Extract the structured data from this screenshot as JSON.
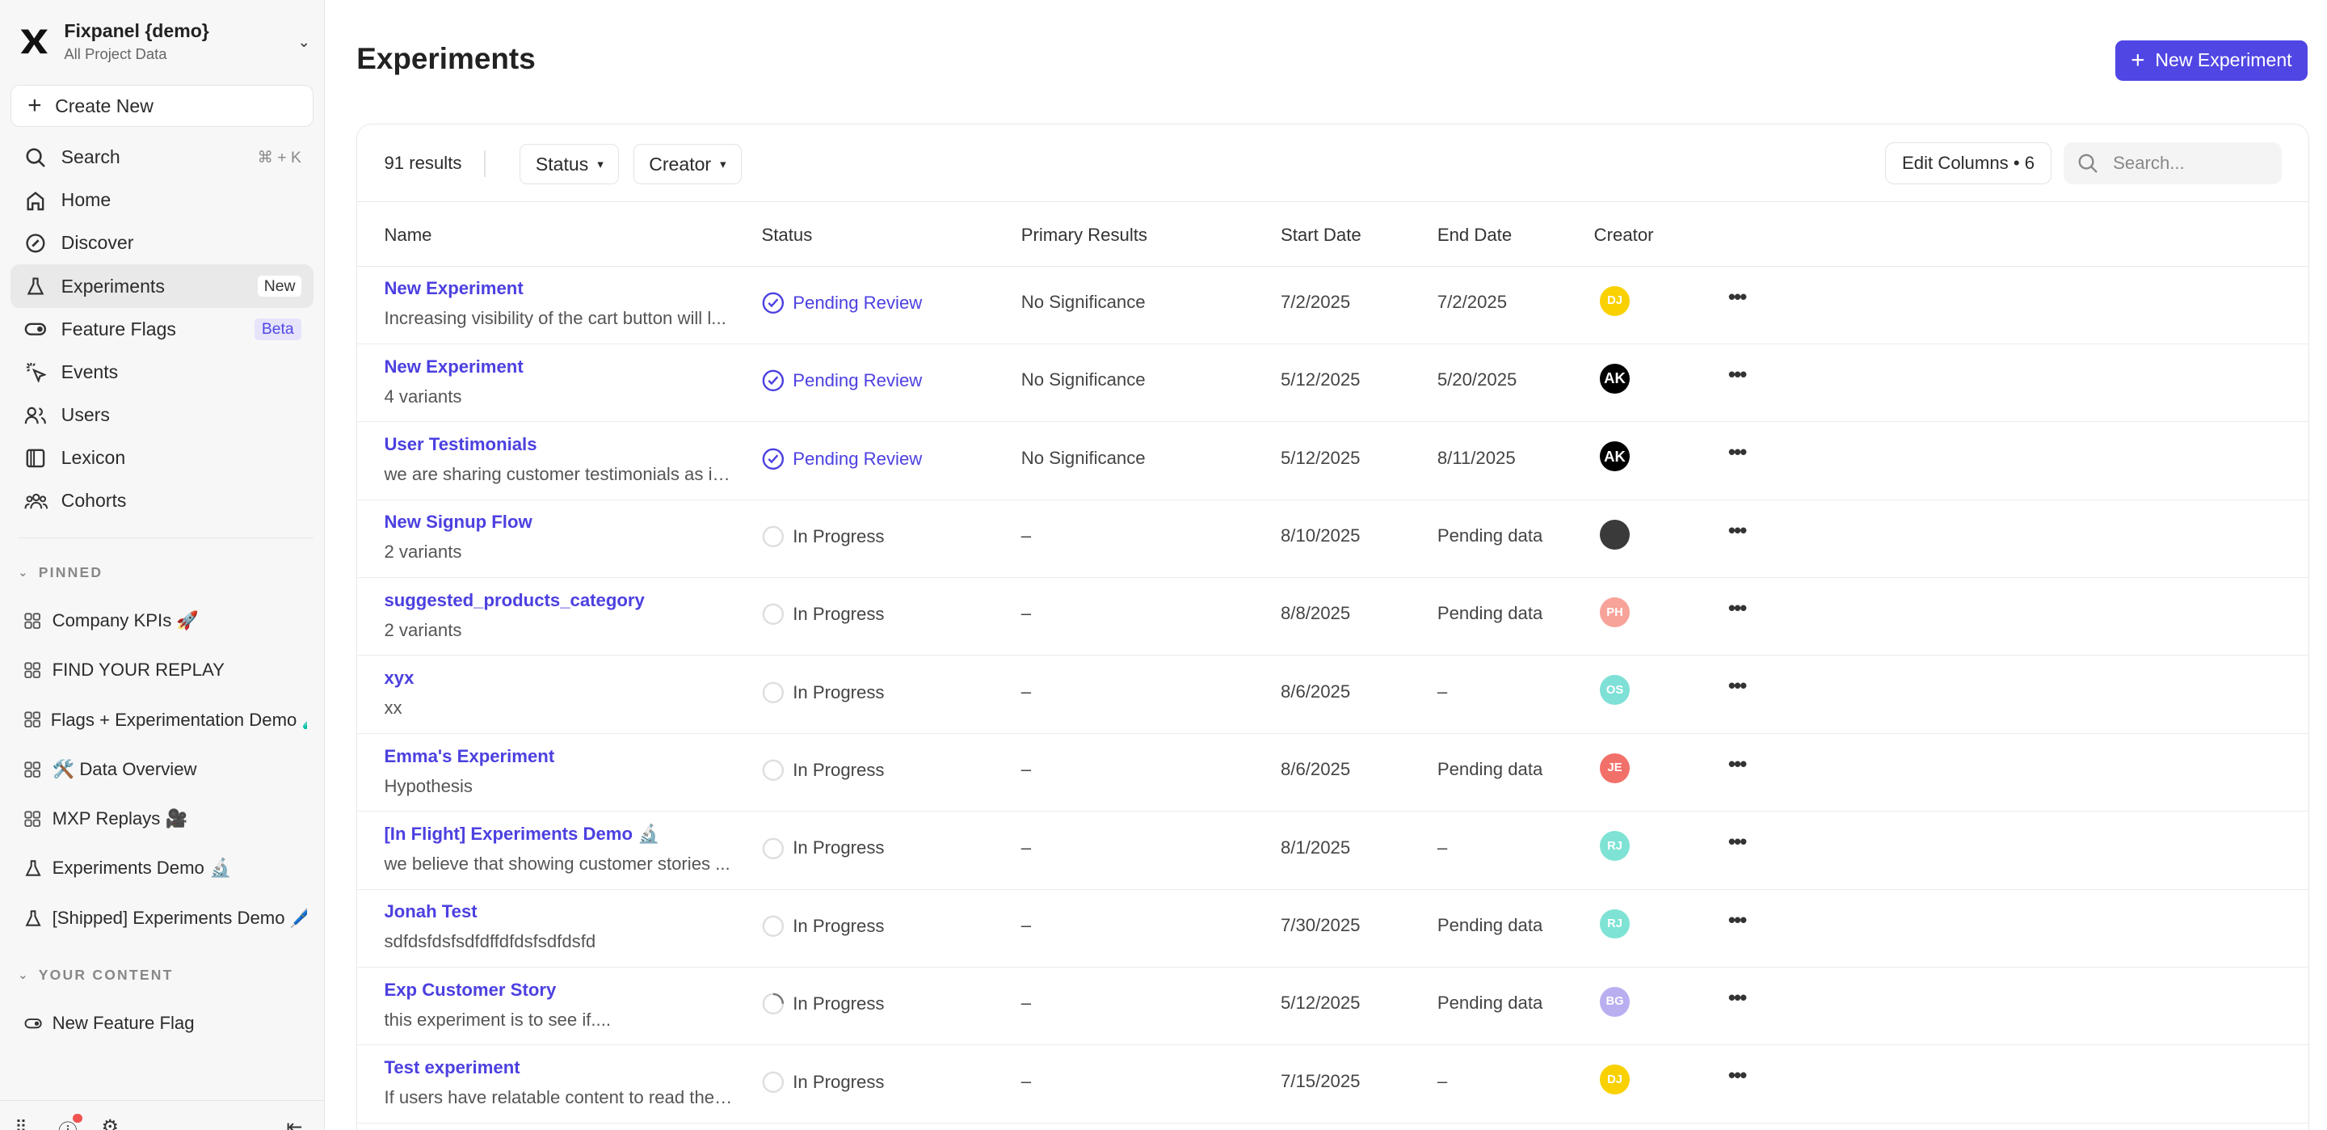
{
  "sidebar": {
    "project_name": "Fixpanel {demo}",
    "project_sub": "All Project Data",
    "create_new": "Create New",
    "nav": [
      {
        "label": "Search",
        "icon": "search-icon",
        "shortcut": "⌘ + K"
      },
      {
        "label": "Home",
        "icon": "home-icon"
      },
      {
        "label": "Discover",
        "icon": "compass-icon"
      },
      {
        "label": "Experiments",
        "icon": "flask-icon",
        "badge": "New",
        "active": true
      },
      {
        "label": "Feature Flags",
        "icon": "toggle-icon",
        "badge": "Beta"
      },
      {
        "label": "Events",
        "icon": "cursor-click-icon"
      },
      {
        "label": "Users",
        "icon": "users-icon"
      },
      {
        "label": "Lexicon",
        "icon": "book-icon"
      },
      {
        "label": "Cohorts",
        "icon": "cohorts-icon"
      }
    ],
    "pinned_label": "PINNED",
    "pinned": [
      {
        "label": "Company KPIs 🚀",
        "icon": "board-icon"
      },
      {
        "label": "FIND YOUR REPLAY",
        "icon": "board-icon"
      },
      {
        "label": "Flags + Experimentation Demo 🧪",
        "icon": "board-icon"
      },
      {
        "label": "🛠️ Data Overview",
        "icon": "board-icon"
      },
      {
        "label": "MXP Replays 🎥",
        "icon": "board-icon"
      },
      {
        "label": "Experiments Demo 🔬",
        "icon": "flask-icon"
      },
      {
        "label": "[Shipped] Experiments Demo 🖊️",
        "icon": "flask-icon"
      }
    ],
    "your_content_label": "YOUR CONTENT",
    "your_content": [
      {
        "label": "New Feature Flag",
        "icon": "toggle-icon"
      }
    ]
  },
  "header": {
    "title": "Experiments",
    "new_button": "New Experiment"
  },
  "toolbar": {
    "results": "91 results",
    "status_filter": "Status",
    "creator_filter": "Creator",
    "edit_columns": "Edit Columns • 6",
    "search_placeholder": "Search..."
  },
  "columns": [
    "Name",
    "Status",
    "Primary Results",
    "Start Date",
    "End Date",
    "Creator"
  ],
  "colors": {
    "accent": "#5046e4"
  },
  "rows": [
    {
      "name": "New Experiment",
      "desc": "Increasing visibility of the cart button will l...",
      "status": "Pending Review",
      "status_type": "pending",
      "primary": "No Significance",
      "start": "7/2/2025",
      "end": "7/2/2025",
      "creator": "DJ",
      "avatar_color": "#f9d100"
    },
    {
      "name": "New Experiment",
      "desc": "4 variants",
      "status": "Pending Review",
      "status_type": "pending",
      "primary": "No Significance",
      "start": "5/12/2025",
      "end": "5/20/2025",
      "creator": "AK",
      "avatar_color": "#000000"
    },
    {
      "name": "User Testimonials",
      "desc": "we are sharing customer testimonials as in...",
      "status": "Pending Review",
      "status_type": "pending",
      "primary": "No Significance",
      "start": "5/12/2025",
      "end": "8/11/2025",
      "creator": "AK",
      "avatar_color": "#000000"
    },
    {
      "name": "New Signup Flow",
      "desc": "2 variants",
      "status": "In Progress",
      "status_type": "progress",
      "primary": "–",
      "start": "8/10/2025",
      "end": "Pending data",
      "creator": "",
      "avatar_color": "#3a3a3a"
    },
    {
      "name": "suggested_products_category",
      "desc": "2 variants",
      "status": "In Progress",
      "status_type": "progress",
      "primary": "–",
      "start": "8/8/2025",
      "end": "Pending data",
      "creator": "PH",
      "avatar_color": "#f7a39a"
    },
    {
      "name": "xyx",
      "desc": "xx",
      "status": "In Progress",
      "status_type": "progress",
      "primary": "–",
      "start": "8/6/2025",
      "end": "–",
      "creator": "OS",
      "avatar_color": "#7ee0d6"
    },
    {
      "name": "Emma's Experiment",
      "desc": "Hypothesis",
      "status": "In Progress",
      "status_type": "progress",
      "primary": "–",
      "start": "8/6/2025",
      "end": "Pending data",
      "creator": "JE",
      "avatar_color": "#f2706a"
    },
    {
      "name": "[In Flight] Experiments Demo 🔬",
      "desc": "we believe that showing customer stories ...",
      "status": "In Progress",
      "status_type": "progress",
      "primary": "–",
      "start": "8/1/2025",
      "end": "–",
      "creator": "RJ",
      "avatar_color": "#7ee3d4"
    },
    {
      "name": "Jonah Test",
      "desc": "sdfdsfdsfsdfdffdfdsfsdfdsfd",
      "status": "In Progress",
      "status_type": "progress",
      "primary": "–",
      "start": "7/30/2025",
      "end": "Pending data",
      "creator": "RJ",
      "avatar_color": "#7ee3d4"
    },
    {
      "name": "Exp Customer Story",
      "desc": "this experiment is to see if....",
      "status": "In Progress",
      "status_type": "loading",
      "primary": "–",
      "start": "5/12/2025",
      "end": "Pending data",
      "creator": "BG",
      "avatar_color": "#b9aef0"
    },
    {
      "name": "Test experiment",
      "desc": "If users have relatable content to read they...",
      "status": "In Progress",
      "status_type": "progress",
      "primary": "–",
      "start": "7/15/2025",
      "end": "–",
      "creator": "DJ",
      "avatar_color": "#f9d100"
    }
  ]
}
